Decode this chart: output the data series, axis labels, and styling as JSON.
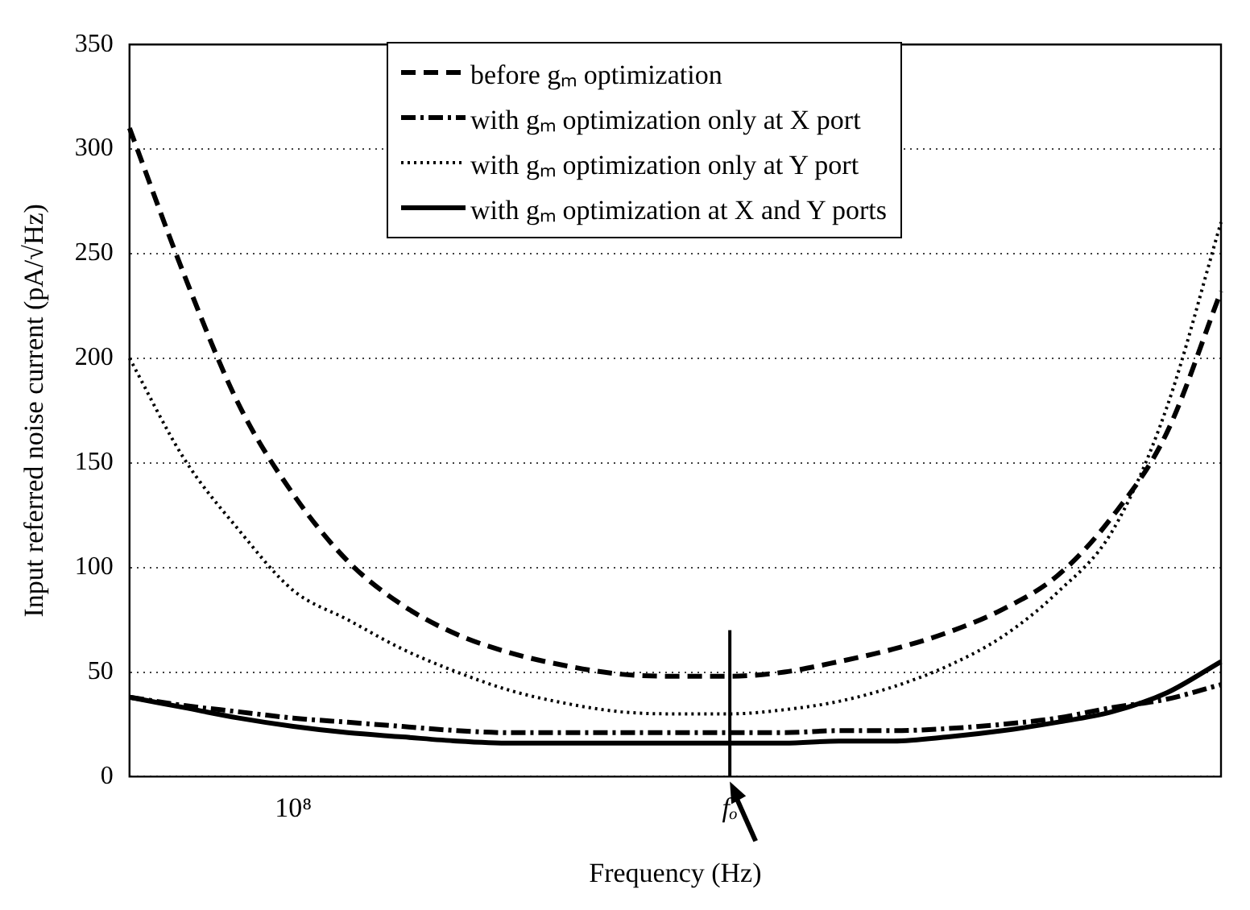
{
  "chart_data": {
    "type": "line",
    "xlabel": "Frequency (Hz)",
    "ylabel": "Input referred noise current (pA/√Hz)",
    "grid": "y",
    "legend": "top",
    "marker": "none",
    "categories": [
      null,
      null,
      null,
      "10⁸",
      null,
      null,
      null,
      null,
      null,
      null,
      null,
      "fₒ",
      null,
      null,
      null,
      null,
      null,
      null,
      null,
      null,
      null
    ],
    "ylim": [
      0,
      350
    ],
    "yticks": [
      0,
      50,
      100,
      150,
      200,
      250,
      300,
      350
    ],
    "ref_lines": [
      {
        "axis": "x",
        "value": "fₒ",
        "color": "#000000",
        "line_style": "solid"
      }
    ],
    "series": [
      {
        "name": "before gₘ optimization",
        "color": "#000000",
        "line_style": "dashed",
        "values": [
          310,
          240,
          178,
          135,
          103,
          82,
          68,
          59,
          53,
          49,
          48,
          48,
          50,
          55,
          61,
          69,
          80,
          96,
          124,
          164,
          232
        ]
      },
      {
        "name": "with gₘ optimization only at X port",
        "color": "#000000",
        "line_style": "dashdot",
        "values": [
          38,
          34,
          31,
          28,
          26,
          24,
          22,
          21,
          21,
          21,
          21,
          21,
          21,
          22,
          22,
          23,
          25,
          28,
          33,
          37,
          44
        ]
      },
      {
        "name": "with gₘ optimization only at Y port",
        "color": "#000000",
        "line_style": "dotted",
        "values": [
          200,
          152,
          118,
          89,
          75,
          61,
          50,
          41,
          35,
          31,
          30,
          30,
          32,
          36,
          43,
          53,
          67,
          88,
          117,
          176,
          265
        ]
      },
      {
        "name": "with gₘ optimization at X and Y ports",
        "color": "#000000",
        "line_style": "solid",
        "values": [
          38,
          33,
          28,
          24,
          21,
          19,
          17,
          16,
          16,
          16,
          16,
          16,
          16,
          17,
          17,
          19,
          22,
          26,
          31,
          40,
          55
        ]
      }
    ]
  }
}
